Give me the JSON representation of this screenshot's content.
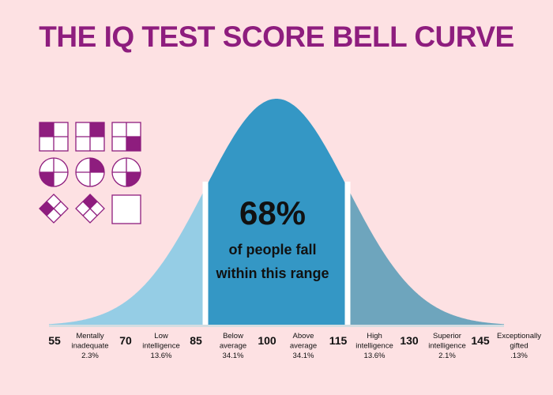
{
  "title": "THE IQ TEST SCORE BELL CURVE",
  "highlight": {
    "percent": "68%",
    "caption_line1": "of people fall",
    "caption_line2": "within this range"
  },
  "chart_data": {
    "type": "area",
    "distribution": "normal",
    "mean": 100,
    "sd": 15,
    "xlim": [
      52,
      148
    ],
    "ticks": [
      55,
      70,
      85,
      100,
      115,
      130,
      145
    ],
    "tick_labels": [
      "55",
      "70",
      "85",
      "100",
      "115",
      "130",
      "145"
    ],
    "bands": [
      {
        "lines": [
          "Mentally",
          "inadequate",
          "2.3%"
        ],
        "from": 55,
        "to": 70,
        "percent": 2.3
      },
      {
        "lines": [
          "Low",
          "intelligence",
          "13.6%"
        ],
        "from": 70,
        "to": 85,
        "percent": 13.6
      },
      {
        "lines": [
          "Below",
          "average",
          "34.1%"
        ],
        "from": 85,
        "to": 100,
        "percent": 34.1
      },
      {
        "lines": [
          "Above",
          "average",
          "34.1%"
        ],
        "from": 100,
        "to": 115,
        "percent": 34.1
      },
      {
        "lines": [
          "High",
          "intelligence",
          "13.6%"
        ],
        "from": 115,
        "to": 130,
        "percent": 13.6
      },
      {
        "lines": [
          "Superior",
          "intelligence",
          "2.1%"
        ],
        "from": 130,
        "to": 145,
        "percent": 2.1
      },
      {
        "lines": [
          "Exceptionally",
          "gifted",
          ".13%"
        ],
        "from": 145,
        "to": 160,
        "percent": 0.13
      }
    ],
    "highlight_range": [
      85,
      115
    ],
    "colors": {
      "left_tail": "#95cde5",
      "center": "#3497c5",
      "right_tail": "#6ea5bd",
      "baseline": "#d4dde1"
    }
  },
  "puzzle": {
    "color": "#8e1d7e",
    "rows": [
      [
        "square-quadrant-filled",
        "square-quadrant-filled",
        "square-quadrant-filled"
      ],
      [
        "circle-quadrant-filled",
        "circle-quadrant-filled",
        "circle-quadrant-filled"
      ],
      [
        "diamond-quadrant-filled",
        "diamond-quadrant-filled",
        "empty-answer-square"
      ]
    ]
  }
}
